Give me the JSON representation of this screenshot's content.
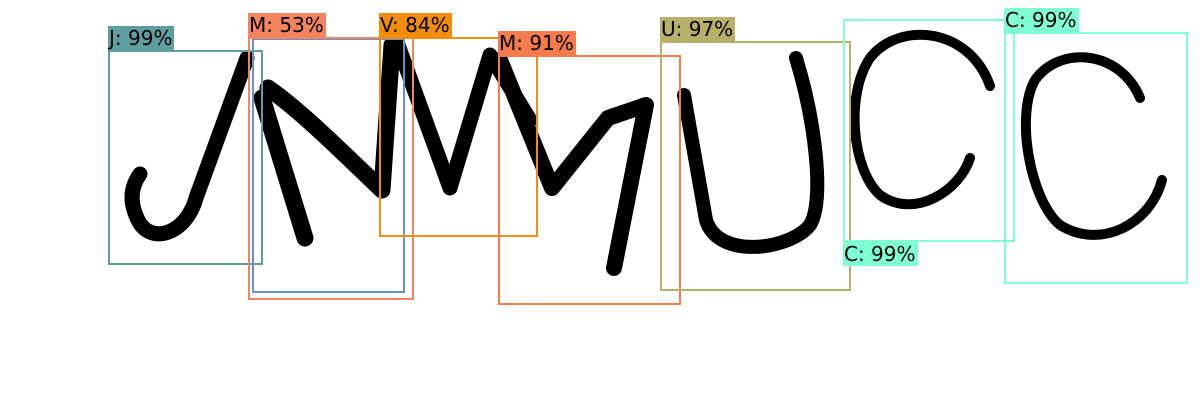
{
  "detections": [
    {
      "label": "J: 99%",
      "color": "#5f9ea0"
    },
    {
      "label": "M: 53%",
      "color": "#f4845f"
    },
    {
      "label": "V: 84%",
      "color": "#f28c0f"
    },
    {
      "label": "M: 91%",
      "color": "#f47c4c"
    },
    {
      "label": "U: 97%",
      "color": "#b8b068"
    },
    {
      "label": "C: 99%",
      "color": "#7fffd4"
    },
    {
      "label": "C: 99%",
      "color": "#7fffd4"
    }
  ],
  "extra_box_color": "#6b8fc8"
}
